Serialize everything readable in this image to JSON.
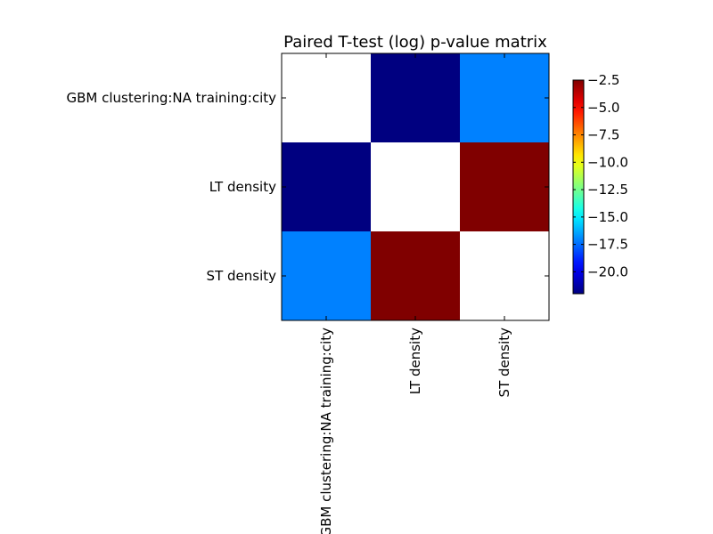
{
  "chart_data": {
    "type": "heatmap",
    "title": "Paired T-test (log) p-value matrix",
    "row_labels": [
      "GBM clustering:NA training:city",
      "LT density",
      "ST density"
    ],
    "col_labels": [
      "GBM clustering:NA training:city",
      "LT density",
      "ST density"
    ],
    "values": [
      [
        null,
        -22.0,
        -17.1
      ],
      [
        -22.0,
        null,
        -2.5
      ],
      [
        -17.1,
        -2.5,
        null
      ]
    ],
    "colormap": "jet",
    "missing_color": "#ffffff",
    "colorbar": {
      "min": -22.0,
      "max": -2.5,
      "ticks": [
        -2.5,
        -5.0,
        -7.5,
        -10.0,
        -12.5,
        -15.0,
        -17.5,
        -20.0
      ],
      "tick_labels": [
        "−2.5",
        "−5.0",
        "−7.5",
        "−10.0",
        "−12.5",
        "−15.0",
        "−17.5",
        "−20.0"
      ]
    },
    "grid": false
  }
}
